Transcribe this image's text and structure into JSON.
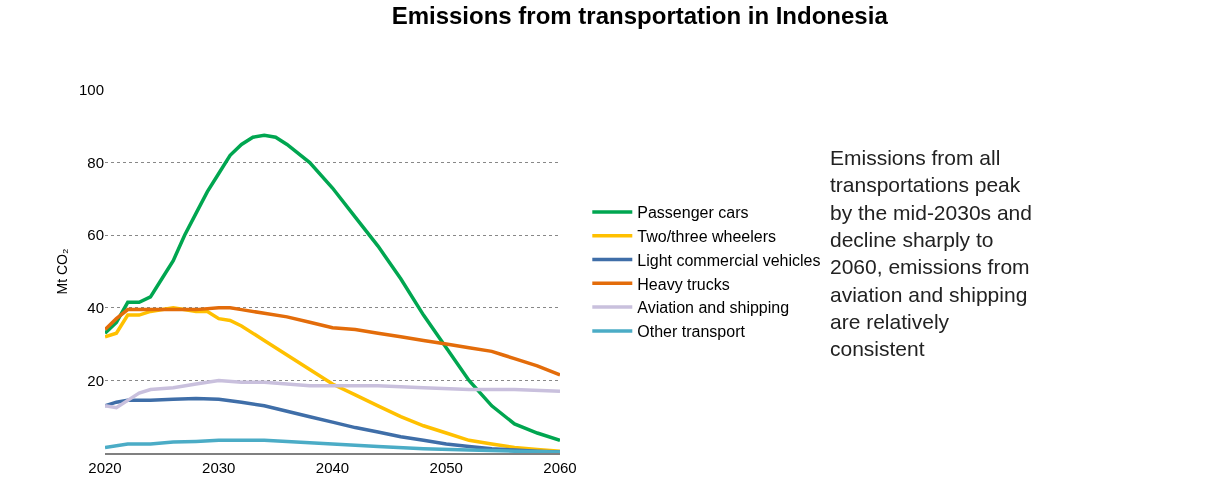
{
  "chart_data": {
    "type": "line",
    "title": "Emissions from transportation in Indonesia",
    "ylabel": "Mt CO₂",
    "xlim": [
      2020,
      2060
    ],
    "xticks": [
      2020,
      2030,
      2040,
      2050,
      2060
    ],
    "ylim": [
      0,
      100
    ],
    "yticks": [
      20,
      40,
      60,
      80,
      100
    ],
    "grid": "y",
    "legend": "right",
    "line_style": "solid",
    "marker": "none",
    "annotations": [
      "Emissions from all transportations peak by the mid-2030s and decline sharply to 2060, emissions from aviation and shipping are relatively consistent"
    ],
    "series": [
      {
        "name": "Passenger cars",
        "color": "#00a650",
        "x": [
          2020,
          2021,
          2022,
          2023,
          2024,
          2025,
          2026,
          2027,
          2028,
          2029,
          2030,
          2031,
          2032,
          2033,
          2034,
          2035,
          2036,
          2038,
          2040,
          2042,
          2044,
          2046,
          2048,
          2050,
          2052,
          2054,
          2056,
          2058,
          2060
        ],
        "values": [
          33,
          36,
          41.5,
          41.5,
          43,
          48,
          53,
          60,
          66,
          72,
          77,
          82,
          85,
          87,
          87.5,
          87,
          85,
          80,
          73,
          65,
          57,
          48,
          38,
          29,
          20,
          13,
          8,
          5.5,
          3.5
        ]
      },
      {
        "name": "Two/three wheelers",
        "color": "#ffc000",
        "x": [
          2020,
          2021,
          2022,
          2023,
          2024,
          2026,
          2028,
          2029,
          2030,
          2031,
          2032,
          2034,
          2036,
          2038,
          2040,
          2042,
          2044,
          2046,
          2048,
          2050,
          2052,
          2054,
          2056,
          2058,
          2060
        ],
        "values": [
          32,
          33,
          38,
          38,
          39,
          40,
          39,
          39,
          37,
          36.5,
          35,
          31,
          27,
          23,
          19,
          16,
          13,
          10,
          7.5,
          5.5,
          3.5,
          2.5,
          1.5,
          1,
          0.5
        ]
      },
      {
        "name": "Light commercial vehicles",
        "color": "#3f6ea8",
        "x": [
          2020,
          2021,
          2022,
          2024,
          2026,
          2028,
          2030,
          2032,
          2034,
          2036,
          2038,
          2040,
          2042,
          2044,
          2046,
          2048,
          2050,
          2052,
          2054,
          2056,
          2058,
          2060
        ],
        "values": [
          13,
          14,
          14.5,
          14.5,
          14.8,
          15,
          14.8,
          14,
          13,
          11.5,
          10,
          8.5,
          7,
          5.8,
          4.5,
          3.5,
          2.5,
          1.8,
          1.2,
          0.8,
          0.5,
          0.3
        ]
      },
      {
        "name": "Heavy trucks",
        "color": "#e36c0a",
        "x": [
          2020,
          2021,
          2022,
          2024,
          2026,
          2028,
          2030,
          2031,
          2032,
          2034,
          2036,
          2038,
          2040,
          2042,
          2044,
          2046,
          2048,
          2050,
          2052,
          2054,
          2055,
          2056,
          2058,
          2060
        ],
        "values": [
          34,
          37,
          39.5,
          39.5,
          39.5,
          39.5,
          40,
          40,
          39.5,
          38.5,
          37.5,
          36,
          34.5,
          34,
          33,
          32,
          31,
          30,
          29,
          28,
          27,
          26,
          24,
          21.5
        ]
      },
      {
        "name": "Aviation and shipping",
        "color": "#c9c0dd",
        "x": [
          2020,
          2021,
          2022,
          2023,
          2024,
          2026,
          2028,
          2030,
          2032,
          2034,
          2036,
          2038,
          2040,
          2044,
          2048,
          2052,
          2056,
          2060
        ],
        "values": [
          13,
          12.5,
          14.5,
          16.5,
          17.5,
          18,
          19,
          20,
          19.5,
          19.5,
          19,
          18.5,
          18.5,
          18.5,
          18,
          17.5,
          17.5,
          17
        ]
      },
      {
        "name": "Other transport",
        "color": "#4bacc6",
        "x": [
          2020,
          2022,
          2024,
          2026,
          2028,
          2030,
          2034,
          2036,
          2040,
          2044,
          2048,
          2052,
          2056,
          2060
        ],
        "values": [
          1.5,
          2.5,
          2.5,
          3,
          3.2,
          3.5,
          3.5,
          3.2,
          2.5,
          1.8,
          1.2,
          0.8,
          0.5,
          0.3
        ]
      }
    ]
  }
}
